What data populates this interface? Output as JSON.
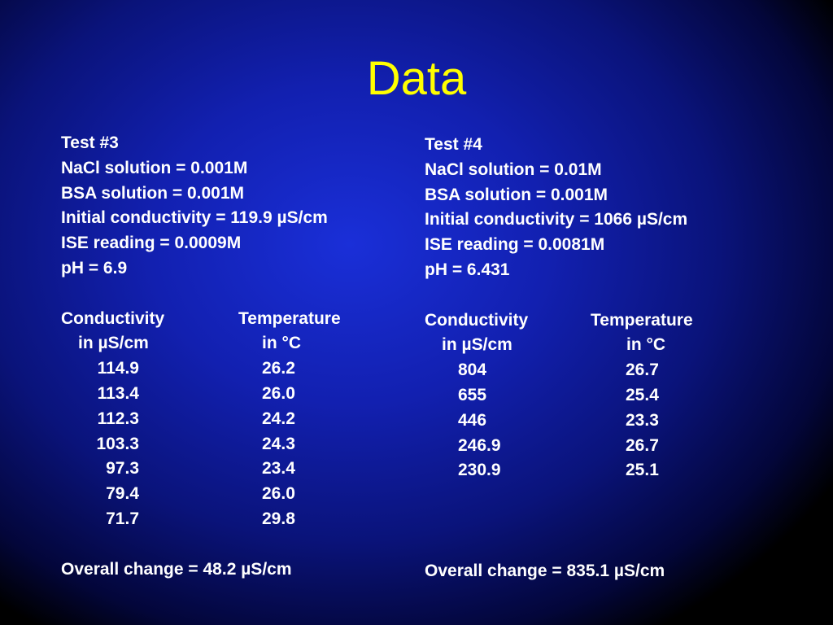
{
  "title": "Data",
  "panels": [
    {
      "heading": "Test #3",
      "details": [
        "NaCl solution = 0.001M",
        "BSA solution = 0.001M",
        "Initial conductivity = 119.9 µS/cm",
        "ISE reading = 0.0009M",
        "pH = 6.9"
      ],
      "table": {
        "headers": [
          [
            "Conductivity",
            "in µS/cm"
          ],
          [
            "Temperature",
            "in °C"
          ]
        ],
        "rows": [
          [
            "114.9",
            "26.2"
          ],
          [
            "113.4",
            "26.0"
          ],
          [
            "112.3",
            "24.2"
          ],
          [
            "103.3",
            "24.3"
          ],
          [
            "97.3",
            "23.4"
          ],
          [
            "79.4",
            "26.0"
          ],
          [
            "71.7",
            "29.8"
          ]
        ]
      },
      "summary": "Overall change = 48.2 µS/cm"
    },
    {
      "heading": "Test #4",
      "details": [
        "NaCl solution = 0.01M",
        "BSA solution = 0.001M",
        "Initial conductivity = 1066 µS/cm",
        "ISE reading = 0.0081M",
        "pH = 6.431"
      ],
      "table": {
        "headers": [
          [
            "Conductivity",
            "in µS/cm"
          ],
          [
            "Temperature",
            "in °C"
          ]
        ],
        "rows": [
          [
            "804",
            "26.7"
          ],
          [
            "655",
            "25.4"
          ],
          [
            "446",
            "23.3"
          ],
          [
            "246.9",
            "26.7"
          ],
          [
            "230.9",
            "25.1"
          ]
        ]
      },
      "summary": "Overall change = 835.1 µS/cm"
    }
  ]
}
